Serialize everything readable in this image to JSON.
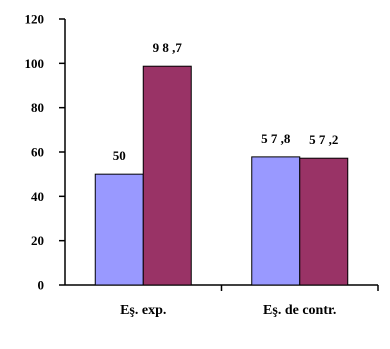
{
  "chart_data": {
    "type": "bar",
    "title": "",
    "xlabel": "",
    "ylabel": "",
    "ylim": [
      0,
      120
    ],
    "yticks": [
      0,
      20,
      40,
      60,
      80,
      100,
      120
    ],
    "grid": false,
    "categories": [
      "Eş. exp.",
      "Eş. de contr."
    ],
    "series": [
      {
        "values": [
          50,
          57.8
        ],
        "labels": [
          "50",
          "5 7 ,8"
        ],
        "color": "#9999ff"
      },
      {
        "values": [
          98.7,
          57.2
        ],
        "labels": [
          "9 8 ,7",
          "5 7 ,2"
        ],
        "color": "#993366"
      }
    ]
  }
}
